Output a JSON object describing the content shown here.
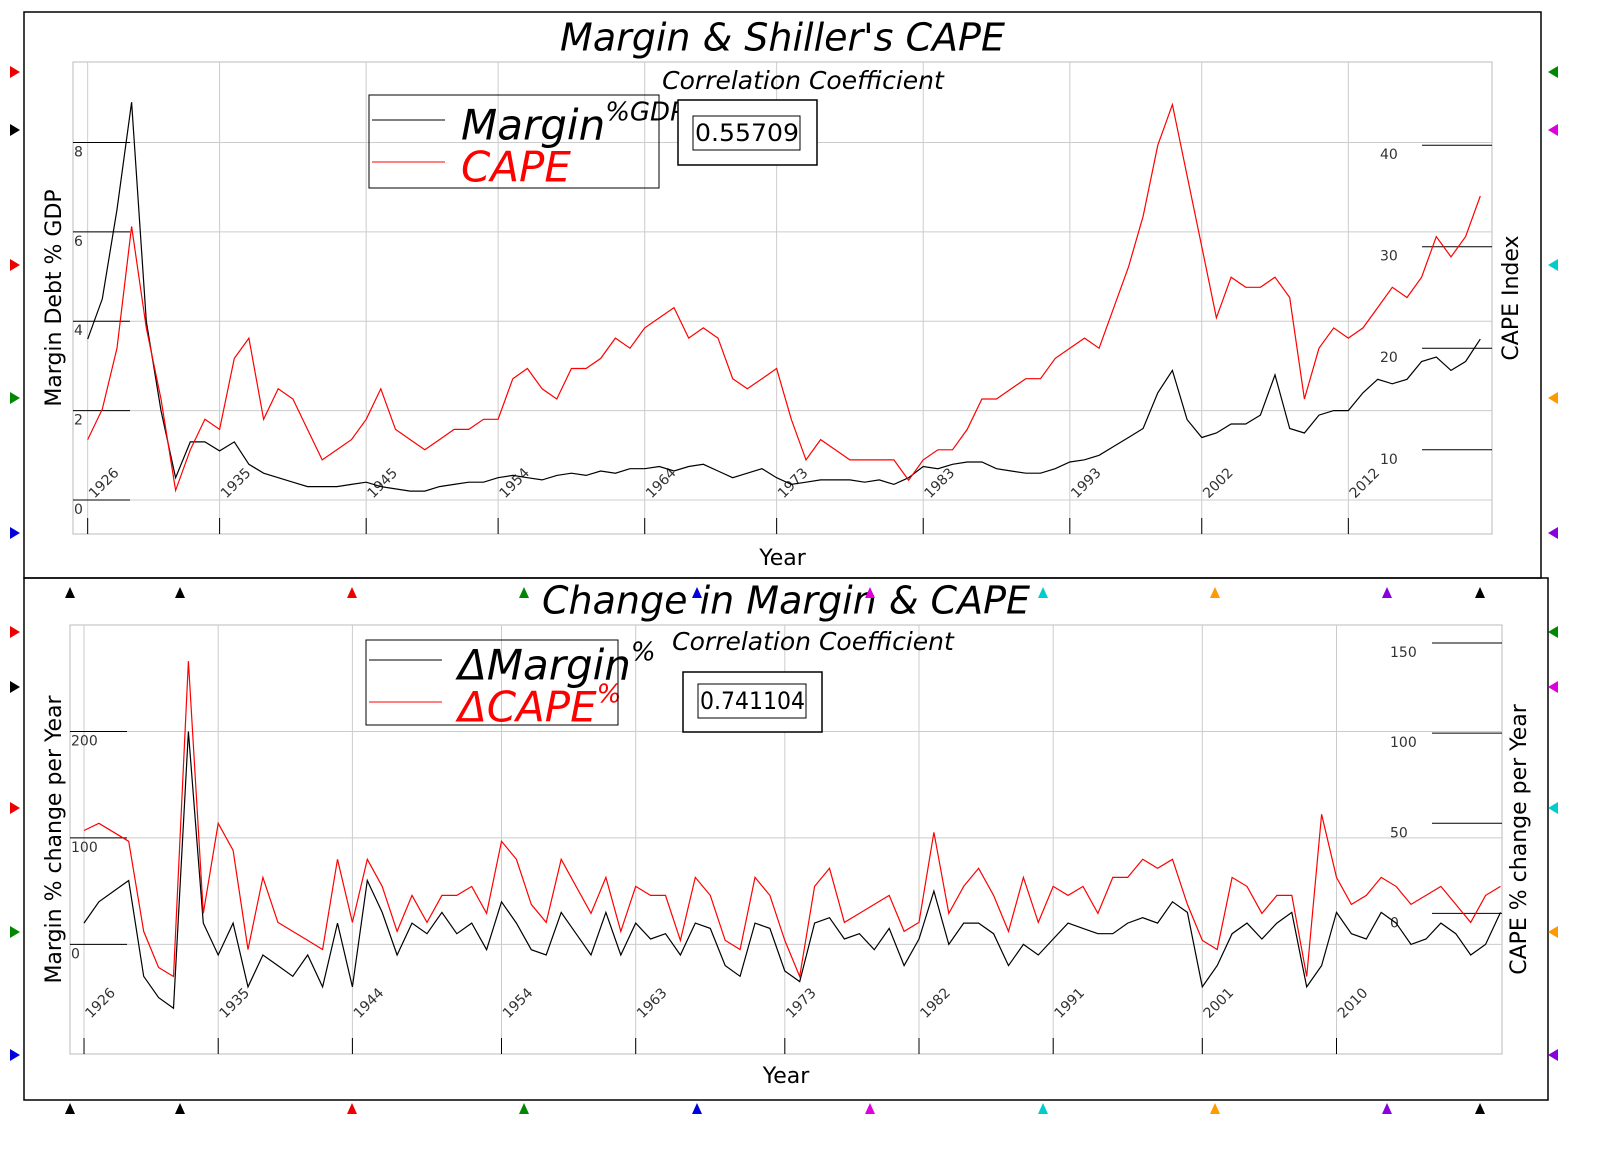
{
  "chart_data": [
    {
      "type": "line",
      "title": "Margin & Shiller's CAPE",
      "annotation": "Correlation Coefficient",
      "correlation": 0.55709,
      "xlabel": "Year",
      "ylabel": "Margin Debt % GDP",
      "y2label": "CAPE Index",
      "xlim": [
        1925,
        2021.8
      ],
      "xticks": [
        1926,
        1935,
        1945,
        1954,
        1964,
        1973,
        1983,
        1993,
        2002,
        2012
      ],
      "ylim": [
        -0.76,
        9.8
      ],
      "yticks": [
        0,
        2,
        4,
        6,
        8
      ],
      "y2lim": [
        1.7,
        48.2
      ],
      "y2ticks": [
        10,
        20,
        30,
        40
      ],
      "grid": true,
      "x": [
        1926,
        1927,
        1928,
        1929,
        1930,
        1931,
        1932,
        1933,
        1934,
        1935,
        1936,
        1937,
        1938,
        1939,
        1940,
        1941,
        1942,
        1943,
        1944,
        1945,
        1946,
        1947,
        1948,
        1949,
        1950,
        1951,
        1952,
        1953,
        1954,
        1955,
        1956,
        1957,
        1958,
        1959,
        1960,
        1961,
        1962,
        1963,
        1964,
        1965,
        1966,
        1967,
        1968,
        1969,
        1970,
        1971,
        1972,
        1973,
        1974,
        1975,
        1976,
        1977,
        1978,
        1979,
        1980,
        1981,
        1982,
        1983,
        1984,
        1985,
        1986,
        1987,
        1988,
        1989,
        1990,
        1991,
        1992,
        1993,
        1994,
        1995,
        1996,
        1997,
        1998,
        1999,
        2000,
        2001,
        2002,
        2003,
        2004,
        2005,
        2006,
        2007,
        2008,
        2009,
        2010,
        2011,
        2012,
        2013,
        2014,
        2015,
        2016,
        2017,
        2018,
        2019,
        2020,
        2021
      ],
      "series": [
        {
          "name": "Margin",
          "name_superscript": "%GDP",
          "color": "#000000",
          "values": [
            3.6,
            4.5,
            6.5,
            8.9,
            4.0,
            2.0,
            0.5,
            1.3,
            1.3,
            1.1,
            1.3,
            0.8,
            0.6,
            0.5,
            0.4,
            0.3,
            0.3,
            0.3,
            0.35,
            0.4,
            0.3,
            0.25,
            0.2,
            0.2,
            0.3,
            0.35,
            0.4,
            0.4,
            0.5,
            0.55,
            0.5,
            0.45,
            0.55,
            0.6,
            0.55,
            0.65,
            0.6,
            0.7,
            0.7,
            0.75,
            0.65,
            0.75,
            0.8,
            0.65,
            0.5,
            0.6,
            0.7,
            0.5,
            0.35,
            0.4,
            0.45,
            0.45,
            0.45,
            0.4,
            0.45,
            0.35,
            0.5,
            0.75,
            0.7,
            0.8,
            0.85,
            0.85,
            0.7,
            0.65,
            0.6,
            0.6,
            0.7,
            0.85,
            0.9,
            1.0,
            1.2,
            1.4,
            1.6,
            2.4,
            2.9,
            1.8,
            1.4,
            1.5,
            1.7,
            1.7,
            1.9,
            2.8,
            1.6,
            1.5,
            1.9,
            2.0,
            2.0,
            2.4,
            2.7,
            2.6,
            2.7,
            3.1,
            3.2,
            2.9,
            3.1,
            3.6
          ]
        },
        {
          "name": "CAPE",
          "color": "#ff0000",
          "axis": "y2",
          "values": [
            11,
            14,
            20,
            32,
            22,
            15,
            6,
            10,
            13,
            12,
            19,
            21,
            13,
            16,
            15,
            12,
            9,
            10,
            11,
            13,
            16,
            12,
            11,
            10,
            11,
            12,
            12,
            13,
            13,
            17,
            18,
            16,
            15,
            18,
            18,
            19,
            21,
            20,
            22,
            23,
            24,
            21,
            22,
            21,
            17,
            16,
            17,
            18,
            13,
            9,
            11,
            10,
            9,
            9,
            9,
            9,
            7,
            9,
            10,
            10,
            12,
            15,
            15,
            16,
            17,
            17,
            19,
            20,
            21,
            20,
            24,
            28,
            33,
            40,
            44,
            37,
            30,
            23,
            27,
            26,
            26,
            27,
            25,
            15,
            20,
            22,
            21,
            22,
            24,
            26,
            25,
            27,
            31,
            29,
            31,
            35
          ]
        }
      ]
    },
    {
      "type": "line",
      "title": "Change in Margin & CAPE",
      "annotation": "Correlation Coefficient",
      "correlation": 0.741104,
      "xlabel": "Year",
      "ylabel": "Margin % change per Year",
      "y2label": "CAPE  % change per Year",
      "xlim": [
        1925.06,
        2021.1
      ],
      "xticks": [
        1926,
        1935,
        1944,
        1954,
        1963,
        1973,
        1982,
        1991,
        2001,
        2010
      ],
      "ylim": [
        -103,
        300
      ],
      "yticks": [
        0,
        100,
        200
      ],
      "y2lim": [
        -78,
        160
      ],
      "y2ticks": [
        0,
        50,
        100,
        150
      ],
      "grid": true,
      "x": [
        1926,
        1927,
        1928,
        1929,
        1930,
        1931,
        1932,
        1933,
        1934,
        1935,
        1936,
        1937,
        1938,
        1939,
        1940,
        1941,
        1942,
        1943,
        1944,
        1945,
        1946,
        1947,
        1948,
        1949,
        1950,
        1951,
        1952,
        1953,
        1954,
        1955,
        1956,
        1957,
        1958,
        1959,
        1960,
        1961,
        1962,
        1963,
        1964,
        1965,
        1966,
        1967,
        1968,
        1969,
        1970,
        1971,
        1972,
        1973,
        1974,
        1975,
        1976,
        1977,
        1978,
        1979,
        1980,
        1981,
        1982,
        1983,
        1984,
        1985,
        1986,
        1987,
        1988,
        1989,
        1990,
        1991,
        1992,
        1993,
        1994,
        1995,
        1996,
        1997,
        1998,
        1999,
        2000,
        2001,
        2002,
        2003,
        2004,
        2005,
        2006,
        2007,
        2008,
        2009,
        2010,
        2011,
        2012,
        2013,
        2014,
        2015,
        2016,
        2017,
        2018,
        2019,
        2020,
        2021
      ],
      "series": [
        {
          "name": "ΔMargin",
          "name_superscript": "%",
          "color": "#000000",
          "values": [
            20,
            40,
            50,
            60,
            -30,
            -50,
            -60,
            200,
            20,
            -10,
            20,
            -40,
            -10,
            -20,
            -30,
            -10,
            -40,
            20,
            -40,
            60,
            30,
            -10,
            20,
            10,
            30,
            10,
            20,
            -5,
            40,
            20,
            -5,
            -10,
            30,
            10,
            -10,
            30,
            -10,
            20,
            5,
            10,
            -10,
            20,
            15,
            -20,
            -30,
            20,
            15,
            -25,
            -35,
            20,
            25,
            5,
            10,
            -5,
            15,
            -20,
            5,
            50,
            0,
            20,
            20,
            10,
            -20,
            0,
            -10,
            5,
            20,
            15,
            10,
            10,
            20,
            25,
            20,
            40,
            30,
            -40,
            -20,
            10,
            20,
            5,
            20,
            30,
            -40,
            -20,
            30,
            10,
            5,
            30,
            20,
            0,
            5,
            20,
            10,
            -10,
            0,
            30
          ]
        },
        {
          "name": "ΔCAPE",
          "name_superscript": "%",
          "color": "#ff0000",
          "axis": "y2",
          "values": [
            46,
            50,
            45,
            40,
            -10,
            -30,
            -35,
            140,
            0,
            50,
            35,
            -20,
            20,
            -5,
            -10,
            -15,
            -20,
            30,
            -5,
            30,
            15,
            -10,
            10,
            -5,
            10,
            10,
            15,
            0,
            40,
            30,
            5,
            -5,
            30,
            15,
            0,
            20,
            -10,
            15,
            10,
            10,
            -15,
            20,
            10,
            -15,
            -20,
            20,
            10,
            -15,
            -35,
            15,
            25,
            -5,
            0,
            5,
            10,
            -10,
            -5,
            45,
            0,
            15,
            25,
            10,
            -10,
            20,
            -5,
            15,
            10,
            15,
            0,
            20,
            20,
            30,
            25,
            30,
            5,
            -15,
            -20,
            20,
            15,
            0,
            10,
            10,
            -35,
            55,
            20,
            5,
            10,
            20,
            15,
            5,
            10,
            15,
            5,
            -5,
            10,
            15
          ]
        }
      ]
    }
  ]
}
